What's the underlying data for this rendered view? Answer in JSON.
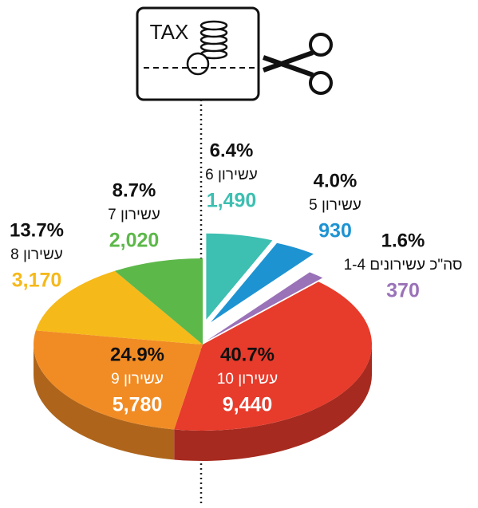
{
  "icon_text": "TAX",
  "chart_data": {
    "type": "pie",
    "categories": [
      "עשירון 6",
      "עשירון 5",
      "סה\"כ עשירונים 1-4",
      "עשירון 10",
      "עשירון 9",
      "עשירון 8",
      "עשירון 7"
    ],
    "values": [
      6.4,
      4.0,
      1.6,
      40.7,
      24.9,
      13.7,
      8.7
    ],
    "value_labels": [
      "6.4%",
      "4.0%",
      "1.6%",
      "40.7%",
      "24.9%",
      "13.7%",
      "8.7%"
    ],
    "amounts": [
      1490,
      930,
      370,
      9440,
      5780,
      3170,
      2020
    ],
    "amount_labels": [
      "1,490",
      "930",
      "370",
      "9,440",
      "5,780",
      "3,170",
      "2,020"
    ],
    "colors": [
      "#3dbfb1",
      "#1e93d2",
      "#9a72b8",
      "#e73b2b",
      "#f18c25",
      "#f6b91a",
      "#5db84a"
    ],
    "amount_colors": [
      "#3dbfb1",
      "#1e93d2",
      "#9a72b8",
      "#ffffff",
      "#ffffff",
      "#f6b91a",
      "#5db84a"
    ]
  }
}
